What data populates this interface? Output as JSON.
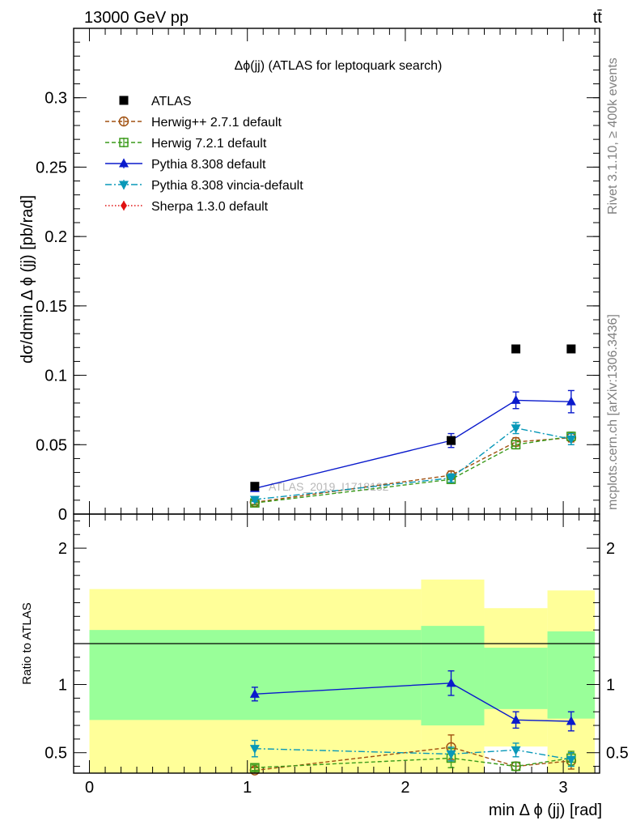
{
  "header": {
    "energy_label": "13000 GeV pp",
    "process_label": "tt̄"
  },
  "side_labels": {
    "rivet": "Rivet 3.1.10, ≥ 400k events",
    "mcplots": "mcplots.cern.ch [arXiv:1306.3436]"
  },
  "chart_data": [
    {
      "type": "scatter",
      "title": "Δϕ(jj) (ATLAS for leptoquark search)",
      "ylabel": "dσ/dmin Δ ϕ (jj) [pb/rad]",
      "xlim": [
        -0.1,
        3.23
      ],
      "ylim": [
        0,
        0.35
      ],
      "yticks": [
        0,
        0.05,
        0.1,
        0.15,
        0.2,
        0.25,
        0.3
      ],
      "ytick_labels": [
        "0",
        "0.05",
        "0.1",
        "0.15",
        "0.2",
        "0.25",
        "0.3"
      ],
      "watermark": "ATLAS_2019_I1718132",
      "x": [
        1.047,
        2.29,
        2.7,
        3.05
      ],
      "series": [
        {
          "name": "ATLAS",
          "color": "#000000",
          "marker": "square-filled",
          "line": "none",
          "values": [
            0.02,
            0.053,
            0.119,
            0.119
          ],
          "errors": [
            0,
            0,
            0,
            0
          ]
        },
        {
          "name": "Herwig++ 2.7.1 default",
          "color": "#a05010",
          "marker": "circle-open",
          "line": "dashed",
          "values": [
            0.0085,
            0.028,
            0.052,
            0.055
          ],
          "errors": [
            0.0015,
            0.003,
            0.003,
            0.003
          ]
        },
        {
          "name": "Herwig 7.2.1 default",
          "color": "#3a9a1a",
          "marker": "square-open",
          "line": "dashed",
          "values": [
            0.008,
            0.025,
            0.05,
            0.056
          ],
          "errors": [
            0.0015,
            0.003,
            0.003,
            0.003
          ]
        },
        {
          "name": "Pythia 8.308 default",
          "color": "#0a1acc",
          "marker": "triangle-up",
          "line": "solid",
          "values": [
            0.0185,
            0.053,
            0.082,
            0.081
          ],
          "errors": [
            0.0015,
            0.005,
            0.006,
            0.008
          ]
        },
        {
          "name": "Pythia 8.308 vincia-default",
          "color": "#0898b8",
          "marker": "triangle-down",
          "line": "dashdot",
          "values": [
            0.0105,
            0.026,
            0.062,
            0.054
          ],
          "errors": [
            0.0015,
            0.003,
            0.004,
            0.004
          ]
        },
        {
          "name": "Sherpa 1.3.0 default",
          "color": "#e01010",
          "marker": "diamond",
          "line": "dotted",
          "values": [],
          "errors": []
        }
      ]
    },
    {
      "type": "line",
      "ylabel": "Ratio to ATLAS",
      "xlabel": "min Δ ϕ (jj) [rad]",
      "xlim": [
        -0.1,
        3.23
      ],
      "ylim": [
        0.35,
        2.25
      ],
      "yticks": [
        0.5,
        1,
        2
      ],
      "ytick_labels": [
        "0.5",
        "1",
        "2"
      ],
      "xticks": [
        0,
        1,
        2,
        3
      ],
      "xtick_labels": [
        "0",
        "1",
        "2",
        "3"
      ],
      "x": [
        1.047,
        2.29,
        2.7,
        3.05
      ],
      "bands": [
        {
          "x0": 0.0,
          "x1": 2.1,
          "yellow": [
            0.35,
            1.7
          ],
          "green": [
            0.74,
            1.4
          ]
        },
        {
          "x0": 2.1,
          "x1": 2.5,
          "yellow": [
            0.35,
            1.77
          ],
          "green": [
            0.7,
            1.43
          ]
        },
        {
          "x0": 2.5,
          "x1": 2.9,
          "yellow": [
            0.35,
            1.56
          ],
          "green": [
            0.82,
            1.27
          ]
        },
        {
          "x0": 2.9,
          "x1": 3.2,
          "yellow": [
            0.35,
            1.69
          ],
          "green": [
            0.75,
            1.39
          ]
        }
      ],
      "series": [
        {
          "name": "Herwig++ 2.7.1 default",
          "values": [
            0.37,
            0.54,
            0.4,
            0.44
          ],
          "errors": [
            0.02,
            0.09,
            0.03,
            0.06
          ]
        },
        {
          "name": "Herwig 7.2.1 default",
          "values": [
            0.39,
            0.46,
            0.4,
            0.46
          ],
          "errors": [
            0.02,
            0.07,
            0.03,
            0.05
          ]
        },
        {
          "name": "Pythia 8.308 default",
          "values": [
            0.93,
            1.01,
            0.74,
            0.73
          ],
          "errors": [
            0.05,
            0.09,
            0.06,
            0.07
          ]
        },
        {
          "name": "Pythia 8.308 vincia-default",
          "values": [
            0.53,
            0.49,
            0.52,
            0.45
          ],
          "errors": [
            0.06,
            0.05,
            0.05,
            0.05
          ]
        }
      ]
    }
  ]
}
